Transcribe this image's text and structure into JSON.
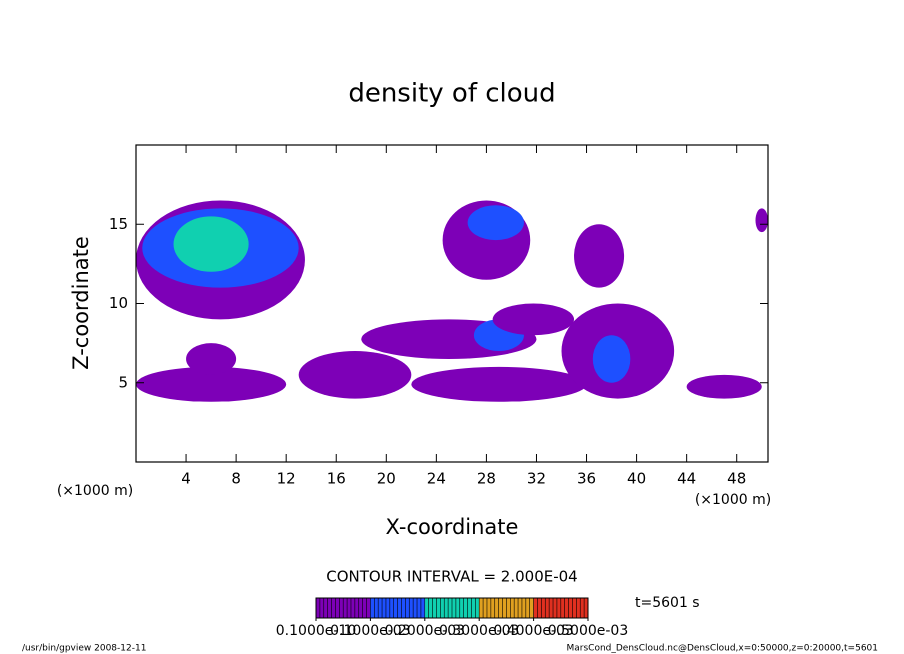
{
  "chart_data": {
    "type": "contour",
    "title": "density of cloud",
    "xlabel": "X-coordinate",
    "ylabel": "Z-coordinate",
    "xunit": "(×1000 m)",
    "yunit": "(×1000 m)",
    "xlim": [
      0,
      50.5
    ],
    "ylim": [
      0,
      20
    ],
    "xticks": [
      4,
      8,
      12,
      16,
      20,
      24,
      28,
      32,
      36,
      40,
      44,
      48
    ],
    "yticks": [
      5,
      10,
      15
    ],
    "contour_interval": "CONTOUR INTERVAL = 2.000E-04",
    "time_label": "t=5601 s",
    "footer_left": "/usr/bin/gpview  2008-12-11",
    "footer_right": "MarsCond_DensCloud.nc@DensCloud,x=0:50000,z=0:20000,t=5601",
    "levels": [
      {
        "value": 1e-11,
        "label": "0.1000e-10"
      },
      {
        "value": 0.0001,
        "label": "0.1000e-03"
      },
      {
        "value": 0.0002,
        "label": "0.2000e-03"
      },
      {
        "value": 0.0003,
        "label": "0.3000e-03"
      },
      {
        "value": 0.0004,
        "label": "0.4000e-03"
      },
      {
        "value": 0.0005,
        "label": "0.5000e-03"
      }
    ],
    "colors": [
      "#7d00b7",
      "#1e50ff",
      "#10d0b0",
      "#e0a020",
      "#e03020"
    ],
    "regions": [
      {
        "x": [
          0,
          13.5
        ],
        "z": [
          9,
          16.5
        ],
        "value": 5e-05
      },
      {
        "x": [
          0.5,
          13
        ],
        "z": [
          11,
          16
        ],
        "value": 0.00015
      },
      {
        "x": [
          3,
          9
        ],
        "z": [
          12,
          15.5
        ],
        "value": 0.00025
      },
      {
        "x": [
          0,
          12
        ],
        "z": [
          3.8,
          6
        ],
        "value": 5e-05
      },
      {
        "x": [
          4,
          8
        ],
        "z": [
          5.5,
          7.5
        ],
        "value": 5e-05
      },
      {
        "x": [
          13,
          22
        ],
        "z": [
          4,
          7
        ],
        "value": 5e-05
      },
      {
        "x": [
          18,
          32
        ],
        "z": [
          6.5,
          9
        ],
        "value": 5e-05
      },
      {
        "x": [
          27,
          31
        ],
        "z": [
          7,
          9
        ],
        "value": 0.00015
      },
      {
        "x": [
          22,
          36
        ],
        "z": [
          3.8,
          6
        ],
        "value": 5e-05
      },
      {
        "x": [
          24.5,
          31.5
        ],
        "z": [
          11.5,
          16.5
        ],
        "value": 5e-05
      },
      {
        "x": [
          26.5,
          31
        ],
        "z": [
          14,
          16.2
        ],
        "value": 0.00015
      },
      {
        "x": [
          28.5,
          35
        ],
        "z": [
          8,
          10
        ],
        "value": 5e-05
      },
      {
        "x": [
          34,
          43
        ],
        "z": [
          4,
          10
        ],
        "value": 5e-05
      },
      {
        "x": [
          36.5,
          39.5
        ],
        "z": [
          5,
          8
        ],
        "value": 0.00015
      },
      {
        "x": [
          35,
          39
        ],
        "z": [
          11,
          15
        ],
        "value": 5e-05
      },
      {
        "x": [
          44,
          50
        ],
        "z": [
          4,
          5.5
        ],
        "value": 5e-05
      },
      {
        "x": [
          49.5,
          50.5
        ],
        "z": [
          14.5,
          16
        ],
        "value": 5e-05
      }
    ]
  }
}
